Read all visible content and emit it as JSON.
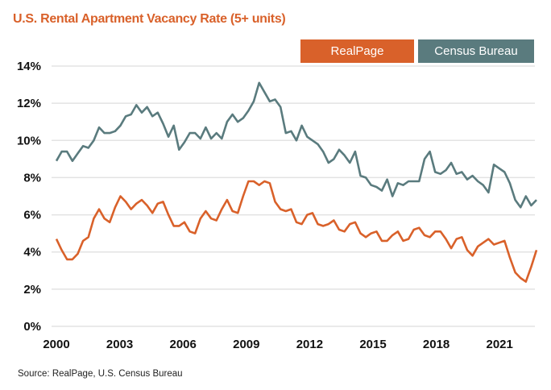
{
  "chart_data": {
    "type": "line",
    "title": "U.S. Rental Apartment Vacancy Rate (5+ units)",
    "xlabel": "",
    "ylabel": "",
    "ylim": [
      0,
      14
    ],
    "y_ticks": [
      "0%",
      "2%",
      "4%",
      "6%",
      "8%",
      "10%",
      "12%",
      "14%"
    ],
    "x_ticks": [
      "2000",
      "2003",
      "2006",
      "2009",
      "2012",
      "2015",
      "2018",
      "2021"
    ],
    "x_range": [
      2000,
      2022.75
    ],
    "grid": true,
    "legend": {
      "placement": "top-right",
      "entries": [
        {
          "name": "RealPage",
          "color": "#D9612A"
        },
        {
          "name": "Census Bureau",
          "color": "#5A7B7E"
        }
      ]
    },
    "series": [
      {
        "name": "Census Bureau",
        "color": "#5A7B7E",
        "frequency": "quarterly",
        "start": 2000,
        "values": [
          8.9,
          9.4,
          9.4,
          8.9,
          9.3,
          9.7,
          9.6,
          10.0,
          10.7,
          10.4,
          10.4,
          10.5,
          10.8,
          11.3,
          11.4,
          11.9,
          11.5,
          11.8,
          11.3,
          11.5,
          10.9,
          10.2,
          10.8,
          9.5,
          9.9,
          10.4,
          10.4,
          10.1,
          10.7,
          10.1,
          10.4,
          10.1,
          11.0,
          11.4,
          11.0,
          11.2,
          11.6,
          12.1,
          13.1,
          12.6,
          12.1,
          12.2,
          11.8,
          10.4,
          10.5,
          10.0,
          10.8,
          10.2,
          10.0,
          9.8,
          9.4,
          8.8,
          9.0,
          9.5,
          9.2,
          8.8,
          9.4,
          8.1,
          8.0,
          7.6,
          7.5,
          7.3,
          7.9,
          7.0,
          7.7,
          7.6,
          7.8,
          7.8,
          7.8,
          9.0,
          9.4,
          8.3,
          8.2,
          8.4,
          8.8,
          8.2,
          8.3,
          7.9,
          8.1,
          7.8,
          7.6,
          7.2,
          8.7,
          8.5,
          8.3,
          7.7,
          6.8,
          6.4,
          7.0,
          6.5,
          6.8
        ]
      },
      {
        "name": "RealPage",
        "color": "#D9612A",
        "frequency": "quarterly",
        "start": 2000,
        "values": [
          4.7,
          4.1,
          3.6,
          3.6,
          3.9,
          4.6,
          4.8,
          5.8,
          6.3,
          5.8,
          5.6,
          6.4,
          7.0,
          6.7,
          6.3,
          6.6,
          6.8,
          6.5,
          6.1,
          6.6,
          6.7,
          6.0,
          5.4,
          5.4,
          5.6,
          5.1,
          5.0,
          5.8,
          6.2,
          5.8,
          5.7,
          6.3,
          6.8,
          6.2,
          6.1,
          7.0,
          7.8,
          7.8,
          7.6,
          7.8,
          7.7,
          6.7,
          6.3,
          6.2,
          6.3,
          5.6,
          5.5,
          6.0,
          6.1,
          5.5,
          5.4,
          5.5,
          5.7,
          5.2,
          5.1,
          5.5,
          5.6,
          5.0,
          4.8,
          5.0,
          5.1,
          4.6,
          4.6,
          4.9,
          5.1,
          4.6,
          4.7,
          5.2,
          5.3,
          4.9,
          4.8,
          5.1,
          5.1,
          4.7,
          4.2,
          4.7,
          4.8,
          4.1,
          3.8,
          4.3,
          4.5,
          4.7,
          4.4,
          4.5,
          4.6,
          3.7,
          2.9,
          2.6,
          2.4,
          3.2,
          4.1
        ]
      }
    ],
    "source": "Source: RealPage, U.S. Census Bureau"
  }
}
